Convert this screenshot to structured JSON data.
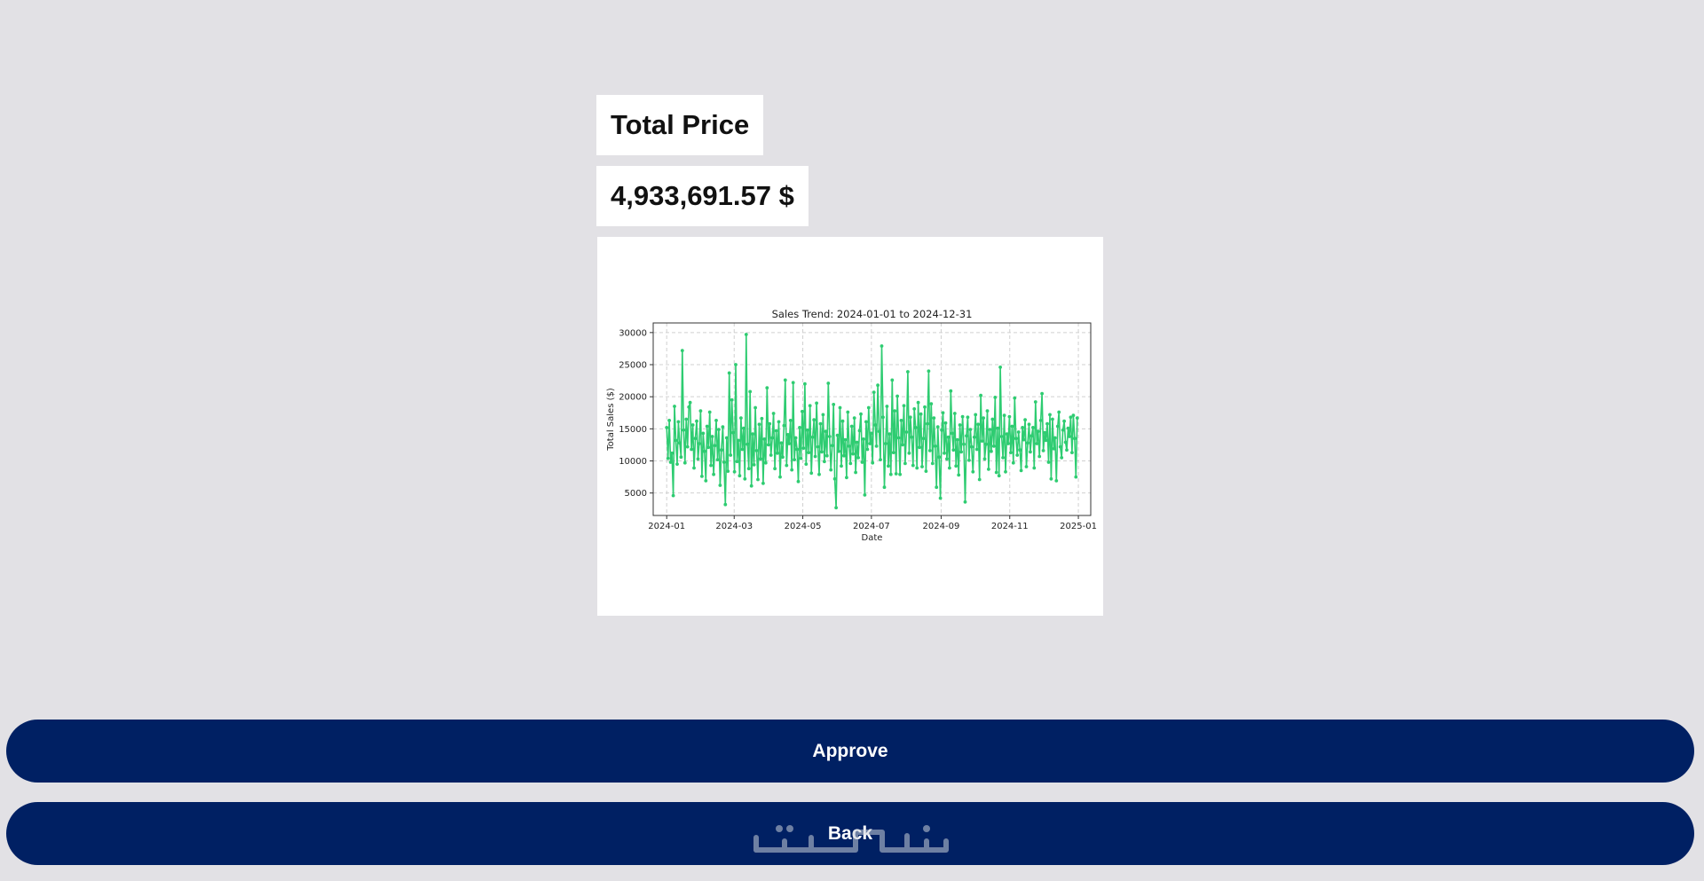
{
  "header": {
    "title": "Total Price",
    "price": "4,933,691.57 $"
  },
  "chart_data": {
    "type": "line",
    "title": "Sales Trend: 2024-01-01 to 2024-12-31",
    "xlabel": "Date",
    "ylabel": "Total Sales ($)",
    "x_ticks": [
      "2024-01",
      "2024-03",
      "2024-05",
      "2024-07",
      "2024-09",
      "2024-11",
      "2025-01"
    ],
    "y_ticks": [
      5000,
      10000,
      15000,
      20000,
      25000,
      30000
    ],
    "ylim": [
      1500,
      31500
    ],
    "xlim": [
      "2023-12-20",
      "2025-01-12"
    ],
    "grid": true,
    "marker": "circle",
    "color": "#2ecc71",
    "series": [
      {
        "x_start": "2024-01-01",
        "x_end": "2024-12-31",
        "y": [
          15200,
          10400,
          16300,
          9800,
          11200,
          4600,
          18500,
          13200,
          9500,
          16100,
          12800,
          10600,
          27200,
          14800,
          9700,
          16500,
          12200,
          18400,
          19100,
          11800,
          15600,
          8900,
          13500,
          16200,
          10300,
          12700,
          17800,
          7600,
          14300,
          11500,
          6900,
          15400,
          12100,
          17600,
          9300,
          13800,
          7900,
          12400,
          16300,
          10200,
          14900,
          6200,
          11700,
          15300,
          9800,
          3200,
          13600,
          8400,
          23700,
          10900,
          19500,
          14400,
          8300,
          25000,
          9900,
          13200,
          7700,
          16700,
          11800,
          15100,
          7200,
          29700,
          12600,
          8800,
          20800,
          6100,
          14200,
          9400,
          18300,
          11600,
          7100,
          15700,
          10300,
          16600,
          6500,
          13400,
          9700,
          21400,
          12500,
          15800,
          10900,
          13600,
          17400,
          8800,
          14700,
          11200,
          16100,
          7500,
          12800,
          10600,
          15500,
          22600,
          9300,
          14100,
          12700,
          16300,
          8600,
          22200,
          10200,
          13600,
          11800,
          6800,
          15200,
          10400,
          17700,
          12000,
          22000,
          9500,
          14800,
          11300,
          18600,
          8100,
          13700,
          16400,
          10700,
          19000,
          12200,
          7900,
          15800,
          11400,
          17200,
          9900,
          14600,
          10800,
          22100,
          13800,
          8600,
          12400,
          18800,
          7200,
          2700,
          14000,
          11500,
          18300,
          9200,
          16200,
          10800,
          13300,
          7400,
          17600,
          12300,
          9600,
          15400,
          11100,
          16700,
          8200,
          12900,
          10500,
          14700,
          17300,
          9800,
          13400,
          4700,
          16100,
          11800,
          18300,
          12700,
          14300,
          9700,
          20700,
          15600,
          12300,
          21800,
          14600,
          10200,
          27900,
          16800,
          5900,
          12700,
          18500,
          9200,
          14200,
          7900,
          22600,
          11300,
          17800,
          8000,
          20100,
          13600,
          7900,
          16300,
          12500,
          18600,
          9600,
          14500,
          23900,
          11200,
          16800,
          13700,
          9300,
          18100,
          15200,
          8900,
          19100,
          12100,
          17300,
          9100,
          13500,
          18400,
          8400,
          15800,
          24000,
          11600,
          18900,
          9600,
          16700,
          12300,
          5900,
          15300,
          10600,
          4200,
          14800,
          17500,
          11200,
          15900,
          10300,
          13700,
          8900,
          20900,
          14300,
          11700,
          17400,
          9200,
          13300,
          7800,
          15600,
          11400,
          16900,
          12600,
          3600,
          13900,
          16800,
          10100,
          14900,
          12200,
          8300,
          13700,
          17200,
          11800,
          15700,
          7100,
          20200,
          13100,
          16700,
          10300,
          12600,
          17800,
          8700,
          14900,
          11500,
          16500,
          12300,
          19900,
          8200,
          15100,
          7700,
          24600,
          13800,
          10500,
          17100,
          8300,
          14200,
          12700,
          16900,
          11300,
          15400,
          9700,
          19800,
          13500,
          10900,
          14500,
          11700,
          8500,
          15200,
          13300,
          16400,
          9100,
          12800,
          15700,
          11400,
          13900,
          15200,
          8900,
          19200,
          12700,
          14600,
          10700,
          16300,
          20500,
          11600,
          14400,
          13200,
          15800,
          9800,
          17200,
          7200,
          16500,
          11900,
          13600,
          6900,
          15400,
          17600,
          12200,
          10500,
          14800,
          16200,
          12900,
          11700,
          15100,
          13800,
          16800,
          11300,
          17100,
          13500,
          7500,
          16700
        ]
      }
    ]
  },
  "buttons": {
    "approve": "Approve",
    "back": "Back"
  },
  "watermark": {
    "text": "خمسات"
  }
}
